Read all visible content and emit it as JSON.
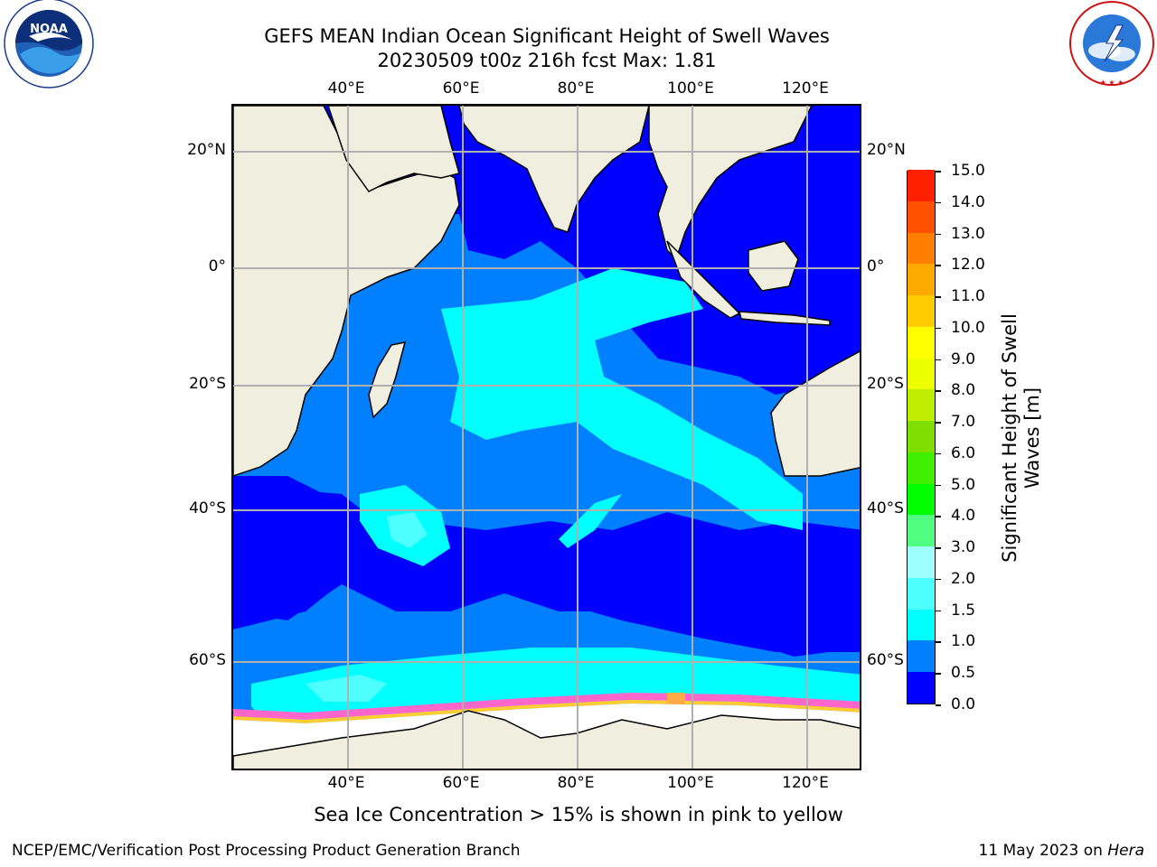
{
  "title": {
    "line1": "GEFS MEAN Indian Ocean Significant Height of Swell Waves",
    "line2": "20230509 t00z 216h fcst   Max: 1.81"
  },
  "map": {
    "lon_ticks": [
      "40°E",
      "60°E",
      "80°E",
      "100°E",
      "120°E"
    ],
    "lat_ticks": [
      "20°N",
      "0°",
      "20°S",
      "40°S",
      "60°S"
    ],
    "lon_range": [
      20,
      130
    ],
    "lat_range": [
      -70,
      26
    ]
  },
  "colorbar": {
    "label": "Significant Height of Swell Waves [m]",
    "ticks": [
      "0.0",
      "0.5",
      "1.0",
      "1.5",
      "2.0",
      "3.0",
      "4.0",
      "5.0",
      "6.0",
      "7.0",
      "8.0",
      "9.0",
      "10.0",
      "11.0",
      "12.0",
      "13.0",
      "14.0",
      "15.0"
    ],
    "colors": [
      "#0000ff",
      "#0080ff",
      "#00ffff",
      "#4dffff",
      "#a0ffff",
      "#50ff80",
      "#00ff00",
      "#40ee00",
      "#80dd00",
      "#c0ee00",
      "#eeff00",
      "#ffff00",
      "#ffcc00",
      "#ffaa00",
      "#ff8000",
      "#ff5000",
      "#ff2000",
      "#ff0000"
    ]
  },
  "note": "Sea Ice Concentration > 15% is shown in pink to yellow",
  "footer": {
    "left": "NCEP/EMC/Verification Post Processing Product Generation Branch",
    "right_prefix": "11 May 2023 on ",
    "right_host": "Hera"
  },
  "logos": {
    "noaa_text": "NOAA",
    "noaa_ring": "NATIONAL OCEANIC AND ATMOSPHERIC ADMINISTRATION",
    "nws_ring": "NATIONAL WEATHER SERVICE"
  }
}
